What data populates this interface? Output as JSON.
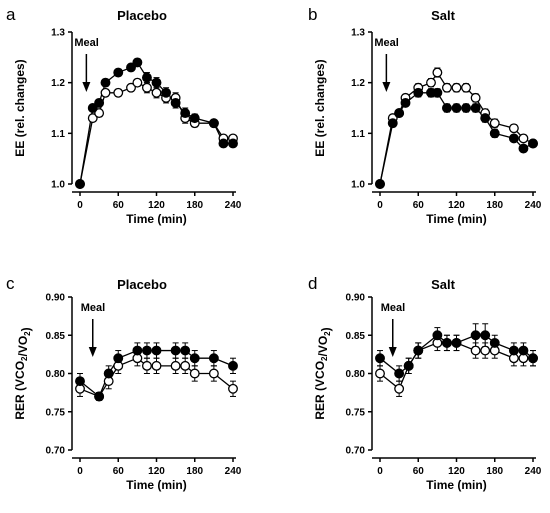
{
  "chart_data": [
    {
      "panel": "a",
      "type": "line",
      "title": "Placebo",
      "xlabel": "Time (min)",
      "ylabel": "EE (rel. changes)",
      "xlim": [
        0,
        240
      ],
      "ylim": [
        1.0,
        1.3
      ],
      "xticks": [
        0,
        60,
        120,
        180,
        240
      ],
      "yticks": [
        "1.0",
        "1.1",
        "1.2",
        "1.3"
      ],
      "grid": false,
      "legend": "none",
      "annotation": {
        "text": "Meal",
        "x": 10
      },
      "x": [
        0,
        20,
        30,
        40,
        60,
        80,
        90,
        105,
        120,
        135,
        150,
        165,
        180,
        210,
        225,
        240
      ],
      "series": [
        {
          "marker": "filled",
          "values": [
            1.0,
            1.15,
            1.16,
            1.2,
            1.22,
            1.23,
            1.24,
            1.21,
            1.2,
            1.18,
            1.16,
            1.14,
            1.13,
            1.12,
            1.08,
            1.08
          ],
          "errors": [
            0,
            0.005,
            0.007,
            0.007,
            0.007,
            0.007,
            0.007,
            0.01,
            0.01,
            0.01,
            0.01,
            0.01,
            0.008,
            0.006,
            0.006,
            0.006
          ]
        },
        {
          "marker": "open",
          "values": [
            1.0,
            1.13,
            1.14,
            1.18,
            1.18,
            1.19,
            1.2,
            1.19,
            1.18,
            1.17,
            1.17,
            1.13,
            1.12,
            1.12,
            1.09,
            1.09
          ],
          "errors": [
            0,
            0.006,
            0.007,
            0.007,
            0.007,
            0.007,
            0.007,
            0.01,
            0.01,
            0.01,
            0.01,
            0.01,
            0.007,
            0.006,
            0.006,
            0.006
          ]
        }
      ]
    },
    {
      "panel": "b",
      "type": "line",
      "title": "Salt",
      "xlabel": "Time (min)",
      "ylabel": "EE (rel. changes)",
      "xlim": [
        0,
        240
      ],
      "ylim": [
        1.0,
        1.3
      ],
      "xticks": [
        0,
        60,
        120,
        180,
        240
      ],
      "yticks": [
        "1.0",
        "1.1",
        "1.2",
        "1.3"
      ],
      "grid": false,
      "legend": "none",
      "annotation": {
        "text": "Meal",
        "x": 10
      },
      "x": [
        0,
        20,
        30,
        40,
        60,
        80,
        90,
        105,
        120,
        135,
        150,
        165,
        180,
        210,
        225,
        240
      ],
      "series": [
        {
          "marker": "filled",
          "values": [
            1.0,
            1.12,
            1.14,
            1.16,
            1.18,
            1.18,
            1.18,
            1.15,
            1.15,
            1.15,
            1.15,
            1.13,
            1.1,
            1.09,
            1.07,
            1.08
          ],
          "errors": [
            0,
            0.005,
            0.006,
            0.007,
            0.008,
            0.008,
            0.008,
            0.008,
            0.008,
            0.008,
            0.008,
            0.008,
            0.008,
            0.007,
            0.007,
            0.007
          ]
        },
        {
          "marker": "open",
          "values": [
            1.0,
            1.13,
            1.14,
            1.17,
            1.19,
            1.2,
            1.22,
            1.19,
            1.19,
            1.19,
            1.17,
            1.14,
            1.12,
            1.11,
            1.09,
            1.08
          ],
          "errors": [
            0,
            0.005,
            0.006,
            0.007,
            0.008,
            0.008,
            0.009,
            0.008,
            0.008,
            0.008,
            0.008,
            0.008,
            0.008,
            0.007,
            0.007,
            0.007
          ]
        }
      ]
    },
    {
      "panel": "c",
      "type": "line",
      "title": "Placebo",
      "xlabel": "Time (min)",
      "ylabel": "RER (VCO₂/VO₂)",
      "xlim": [
        0,
        240
      ],
      "ylim": [
        0.7,
        0.9
      ],
      "xticks": [
        0,
        60,
        120,
        180,
        240
      ],
      "yticks": [
        "0.70",
        "0.75",
        "0.80",
        "0.85",
        "0.90"
      ],
      "grid": false,
      "legend": "none",
      "annotation": {
        "text": "Meal",
        "x": 20
      },
      "x": [
        0,
        30,
        45,
        60,
        90,
        105,
        120,
        150,
        165,
        180,
        210,
        240
      ],
      "series": [
        {
          "marker": "filled",
          "values": [
            0.79,
            0.77,
            0.8,
            0.82,
            0.83,
            0.83,
            0.83,
            0.83,
            0.83,
            0.82,
            0.82,
            0.81
          ],
          "errors": [
            0.01,
            0.005,
            0.01,
            0.01,
            0.01,
            0.01,
            0.01,
            0.01,
            0.01,
            0.01,
            0.01,
            0.01
          ]
        },
        {
          "marker": "open",
          "values": [
            0.78,
            0.77,
            0.79,
            0.81,
            0.82,
            0.81,
            0.81,
            0.81,
            0.81,
            0.8,
            0.8,
            0.78
          ],
          "errors": [
            0.01,
            0.005,
            0.01,
            0.01,
            0.01,
            0.01,
            0.01,
            0.01,
            0.01,
            0.01,
            0.01,
            0.01
          ]
        }
      ]
    },
    {
      "panel": "d",
      "type": "line",
      "title": "Salt",
      "xlabel": "Time (min)",
      "ylabel": "RER (VCO₂/VO₂)",
      "xlim": [
        0,
        240
      ],
      "ylim": [
        0.7,
        0.9
      ],
      "xticks": [
        0,
        60,
        120,
        180,
        240
      ],
      "yticks": [
        "0.70",
        "0.75",
        "0.80",
        "0.85",
        "0.90"
      ],
      "grid": false,
      "legend": "none",
      "annotation": {
        "text": "Meal",
        "x": 20
      },
      "x": [
        0,
        30,
        45,
        60,
        90,
        105,
        120,
        150,
        165,
        180,
        210,
        225,
        240
      ],
      "series": [
        {
          "marker": "filled",
          "values": [
            0.82,
            0.8,
            0.81,
            0.83,
            0.85,
            0.84,
            0.84,
            0.85,
            0.85,
            0.84,
            0.83,
            0.83,
            0.82
          ],
          "errors": [
            0.01,
            0.01,
            0.01,
            0.01,
            0.01,
            0.01,
            0.01,
            0.015,
            0.015,
            0.01,
            0.01,
            0.01,
            0.01
          ]
        },
        {
          "marker": "open",
          "values": [
            0.8,
            0.78,
            0.81,
            0.83,
            0.84,
            0.84,
            0.84,
            0.83,
            0.83,
            0.83,
            0.82,
            0.82,
            0.82
          ],
          "errors": [
            0.01,
            0.01,
            0.01,
            0.01,
            0.01,
            0.01,
            0.01,
            0.01,
            0.01,
            0.01,
            0.01,
            0.01,
            0.01
          ]
        }
      ]
    }
  ]
}
